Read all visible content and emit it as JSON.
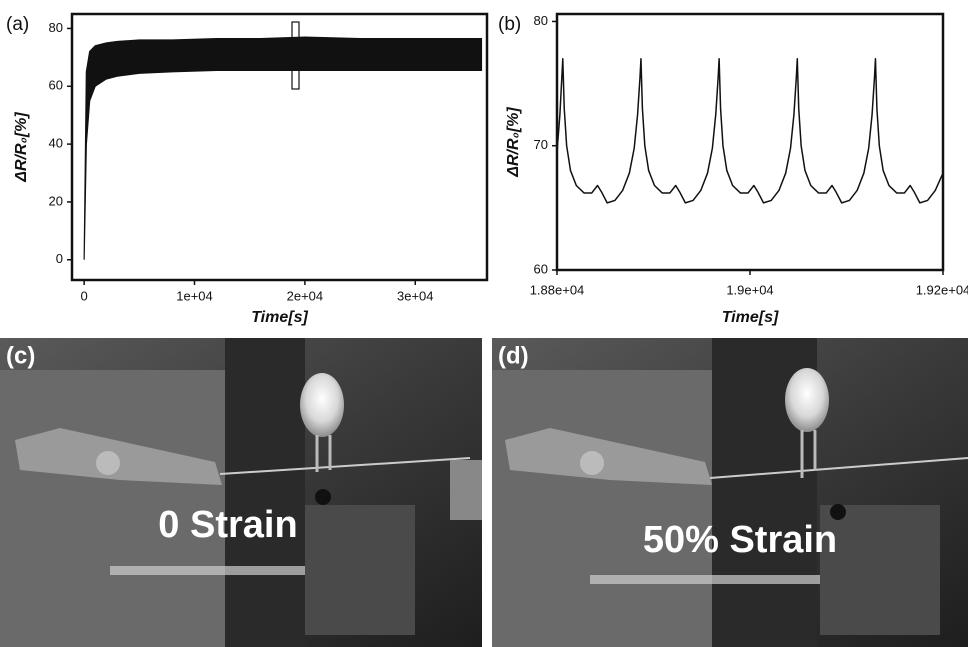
{
  "chart_data": [
    {
      "type": "band",
      "panel_label": "(a)",
      "xlabel": "Time[s]",
      "ylabel": "ΔR/R₀[%]",
      "color": "#111111",
      "x": [
        0,
        200,
        500,
        1000,
        2000,
        3000,
        5000,
        8000,
        12000,
        16000,
        20000,
        25000,
        30000,
        36000
      ],
      "series": [
        {
          "values": [
            0,
            65,
            72,
            74,
            75,
            75.5,
            76,
            76,
            76.5,
            76.5,
            77,
            76.5,
            76.5,
            76.5
          ]
        },
        {
          "values": [
            0,
            40,
            55,
            60,
            62.5,
            63.5,
            64.5,
            65,
            65.5,
            65.5,
            65.5,
            65.5,
            65.5,
            65.5
          ]
        }
      ],
      "xlim": [
        -1100,
        36500
      ],
      "xticks": [
        0,
        {
          "value": 10000,
          "label": "1e+04"
        },
        {
          "value": 20000,
          "label": "2e+04"
        },
        {
          "value": 30000,
          "label": "3e+04"
        }
      ],
      "ylim": [
        -7,
        85
      ],
      "yticks": [
        0,
        20,
        40,
        60,
        80
      ]
    },
    {
      "type": "line",
      "panel_label": "(b)",
      "xlabel": "Time[s]",
      "ylabel": "ΔR/R₀[%]",
      "color": "#111111",
      "x": [
        18800,
        18803,
        18805,
        18806,
        18807.5,
        18810,
        18814,
        18820,
        18828,
        18836,
        18842,
        18846,
        18852,
        18860,
        18868,
        18875,
        18880,
        18883.5,
        18886,
        18887,
        18888.5,
        18891,
        18895,
        18901,
        18909,
        18917,
        18923,
        18927,
        18933,
        18941,
        18949,
        18956,
        18961,
        18964.5,
        18967,
        18968,
        18969.5,
        18972,
        18976,
        18982,
        18990,
        18998,
        19004,
        19008,
        19014,
        19022,
        19030,
        19037,
        19042,
        19045.5,
        19048,
        19049,
        19050.5,
        19053,
        19057,
        19063,
        19071,
        19079,
        19085,
        19089,
        19095,
        19103,
        19111,
        19118,
        19123,
        19126.5,
        19129,
        19130,
        19131.5,
        19134,
        19138,
        19144,
        19152,
        19160,
        19166,
        19170,
        19176,
        19184,
        19192,
        19200
      ],
      "values": [
        69.5,
        72.5,
        75.5,
        77,
        73,
        70,
        68,
        66.8,
        66.2,
        66.2,
        66.8,
        66.3,
        65.4,
        65.6,
        66.4,
        67.8,
        69.8,
        72.5,
        75.5,
        77,
        73,
        70,
        68,
        66.8,
        66.2,
        66.2,
        66.8,
        66.3,
        65.4,
        65.6,
        66.4,
        67.8,
        69.8,
        72.5,
        75.5,
        77,
        73,
        70,
        68,
        66.8,
        66.2,
        66.2,
        66.8,
        66.3,
        65.4,
        65.6,
        66.4,
        67.8,
        69.8,
        72.5,
        75.5,
        77,
        73,
        70,
        68,
        66.8,
        66.2,
        66.2,
        66.8,
        66.3,
        65.4,
        65.6,
        66.4,
        67.8,
        69.8,
        72.5,
        75.5,
        77,
        73,
        70,
        68,
        66.8,
        66.2,
        66.2,
        66.8,
        66.3,
        65.4,
        65.6,
        66.4,
        67.8
      ],
      "xlim": [
        18800,
        19200
      ],
      "xticks": [
        {
          "value": 18800,
          "label": "1.88e+04"
        },
        {
          "value": 19000,
          "label": "1.9e+04"
        },
        {
          "value": 19200,
          "label": "1.92e+04"
        }
      ],
      "ylim": [
        60,
        80.6
      ],
      "yticks": [
        60,
        70,
        80
      ]
    }
  ],
  "photos": [
    {
      "label": "(c)",
      "caption": "0 Strain"
    },
    {
      "label": "(d)",
      "caption": "50% Strain"
    }
  ]
}
